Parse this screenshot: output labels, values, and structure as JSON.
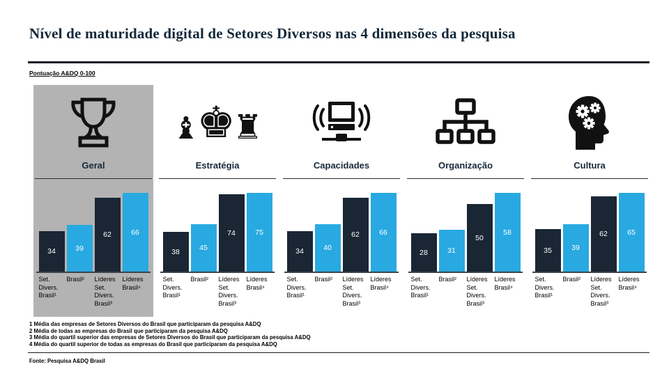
{
  "header": {
    "title": "Nível de maturidade digital de Setores Diversos nas 4 dimensões da pesquisa",
    "subtitle": "Pontuação A&DQ 0-100"
  },
  "chart_data": {
    "type": "bar",
    "title": "Nível de maturidade digital de Setores Diversos nas 4 dimensões da pesquisa",
    "score_scale": "0-100",
    "categories": [
      "Set.\nDivers.\nBrasil¹",
      "Brasil²",
      "Líderes\nSet.\nDivers.\nBrasil³",
      "Líderes\nBrasil⁴"
    ],
    "groups": [
      {
        "label": "Geral",
        "icon": "trophy-icon",
        "highlighted": true,
        "values": [
          34,
          39,
          62,
          66
        ]
      },
      {
        "label": "Estratégia",
        "icon": "chess-icon",
        "highlighted": false,
        "values": [
          38,
          45,
          74,
          75
        ]
      },
      {
        "label": "Capacidades",
        "icon": "computer-signal-icon",
        "highlighted": false,
        "values": [
          34,
          40,
          62,
          66
        ]
      },
      {
        "label": "Organização",
        "icon": "org-chart-icon",
        "highlighted": false,
        "values": [
          28,
          31,
          50,
          58
        ]
      },
      {
        "label": "Cultura",
        "icon": "head-gears-icon",
        "highlighted": false,
        "values": [
          35,
          39,
          62,
          65
        ]
      }
    ],
    "bar_colors": {
      "dark": "#1a2634",
      "light": "#29a9e1"
    },
    "highlight_panel_color": "#b3b3b3",
    "layout": {
      "normalized_per_group": true,
      "value_labels": "white-centered-in-bar",
      "grid": false,
      "legend": "none"
    }
  },
  "footnotes": [
    "1 Média das empresas de Setores Diversos do Brasil que participaram da pesquisa A&DQ",
    "2 Média de todas as empresas do Brasil que participaram da pesquisa A&DQ",
    "3 Média do quartil superior das empresas de Setores Diversos do Brasil que participaram da pesquisa A&DQ",
    "4 Média do quartil superior de todas as empresas do Brasil que participaram da pesquisa A&DQ"
  ],
  "source": "Fonte: Pesquisa A&DQ Brasil"
}
